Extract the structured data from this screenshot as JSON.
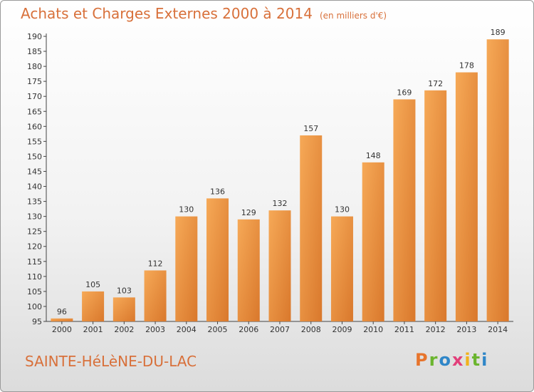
{
  "header": {
    "title": "Achats et Charges Externes 2000 à 2014",
    "unit": "(en milliers d'€)"
  },
  "footer": {
    "commune": "SAINTE-HéLèNE-DU-LAC",
    "brand": [
      "P",
      "r",
      "o",
      "x",
      "i",
      "t",
      "i"
    ]
  },
  "colors": {
    "bar_light": "#f6a957",
    "bar_dark": "#d9782c",
    "title": "#d8703a"
  },
  "chart_data": {
    "type": "bar",
    "title": "Achats et Charges Externes 2000 à 2014",
    "subtitle": "(en milliers d'€)",
    "xlabel": "",
    "ylabel": "",
    "categories": [
      "2000",
      "2001",
      "2002",
      "2003",
      "2004",
      "2005",
      "2006",
      "2007",
      "2008",
      "2009",
      "2010",
      "2011",
      "2012",
      "2013",
      "2014"
    ],
    "values": [
      96,
      105,
      103,
      112,
      130,
      136,
      129,
      132,
      157,
      130,
      148,
      169,
      172,
      178,
      189
    ],
    "ylim": [
      95,
      190
    ],
    "yticks": [
      95,
      100,
      105,
      110,
      115,
      120,
      125,
      130,
      135,
      140,
      145,
      150,
      155,
      160,
      165,
      170,
      175,
      180,
      185,
      190
    ],
    "grid": false
  }
}
